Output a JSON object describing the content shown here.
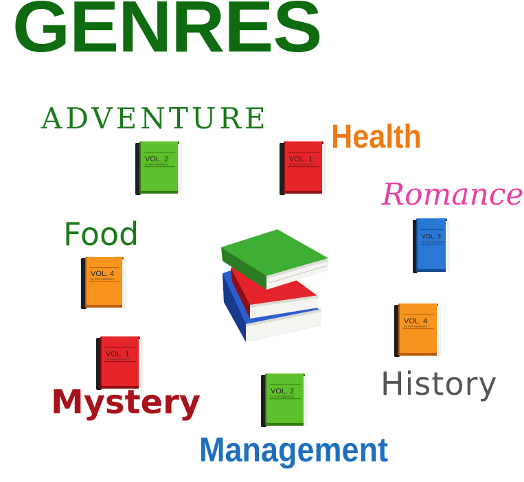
{
  "title": {
    "text": "GENRES",
    "color": "#0f6b10"
  },
  "genres": [
    {
      "id": "adventure",
      "label": "ADVENTURE",
      "color": "#1a7a1a"
    },
    {
      "id": "health",
      "label": "Health",
      "color": "#f07a12"
    },
    {
      "id": "romance",
      "label": "Romance",
      "color": "#ea3fa0"
    },
    {
      "id": "food",
      "label": "Food",
      "color": "#1a7a1a"
    },
    {
      "id": "mystery",
      "label": "Mystery",
      "color": "#a8121a"
    },
    {
      "id": "history",
      "label": "History",
      "color": "#555555"
    },
    {
      "id": "management",
      "label": "Management",
      "color": "#1f6fc0"
    }
  ],
  "books": [
    {
      "id": "book-green-1",
      "vol": "VOL. 2",
      "byline": "by John Appleseed",
      "color": "green"
    },
    {
      "id": "book-red-1",
      "vol": "VOL. 1",
      "byline": "by John Appleseed",
      "color": "red"
    },
    {
      "id": "book-blue-1",
      "vol": "VOL. 3",
      "byline": "by John Appleseed",
      "color": "blue"
    },
    {
      "id": "book-orange-1",
      "vol": "VOL. 4",
      "byline": "by John Appleseed",
      "color": "orange"
    },
    {
      "id": "book-orange-2",
      "vol": "VOL. 4",
      "byline": "by John Appleseed",
      "color": "orange"
    },
    {
      "id": "book-red-2",
      "vol": "VOL. 1",
      "byline": "by John Appleseed",
      "color": "red"
    },
    {
      "id": "book-green-2",
      "vol": "VOL. 2",
      "byline": "by John Appleseed",
      "color": "green"
    }
  ],
  "palette": {
    "green": {
      "cover": "#5ec02a",
      "dark": "#2f7a12",
      "spine": "#1f1f1f"
    },
    "red": {
      "cover": "#e5252a",
      "dark": "#8e0d10",
      "spine": "#1f1f1f"
    },
    "blue": {
      "cover": "#2a78d6",
      "dark": "#154a8e",
      "spine": "#1f1f1f"
    },
    "orange": {
      "cover": "#f7941d",
      "dark": "#b85c06",
      "spine": "#1f1f1f"
    }
  },
  "icons": {
    "book": "closed-book-icon",
    "stack": "books-stack-icon"
  }
}
